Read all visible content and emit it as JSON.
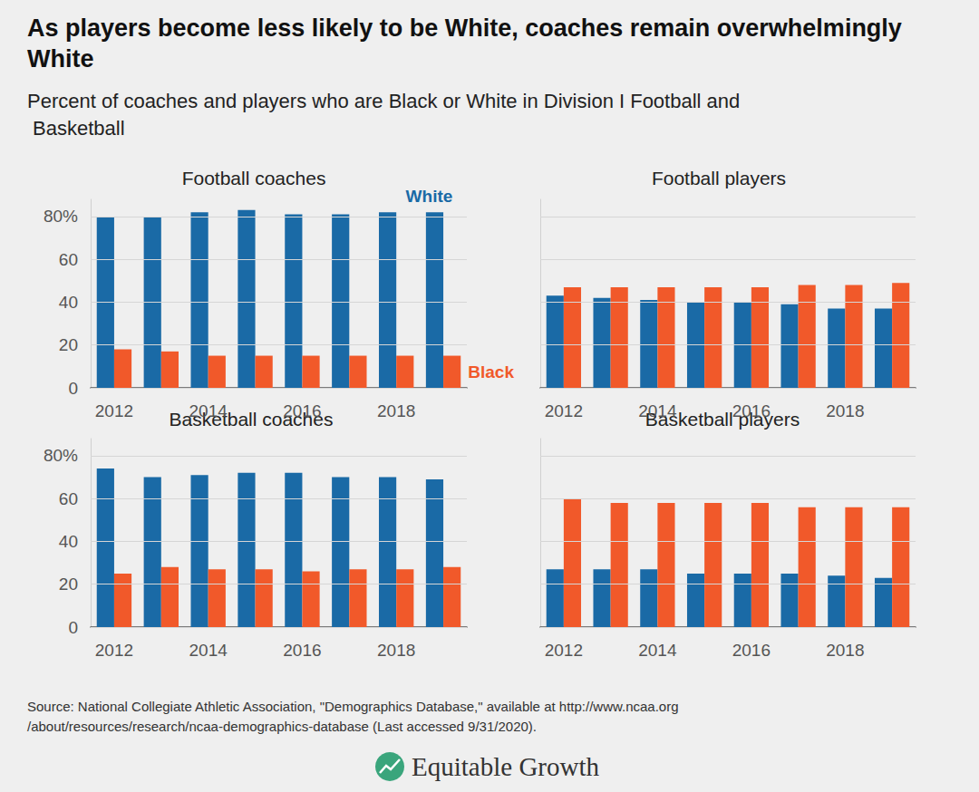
{
  "title": "As players become less likely to be White, coaches remain overwhelmingly White",
  "subtitle": "Percent of coaches and players who are Black or White in Division I Football and Basketball",
  "source": "Source: National Collegiate Athletic Association, \"Demographics Database,\" available at http://www.ncaa.org/about/resources/research/ncaa-demographics-database (Last accessed 9/31/2020).",
  "brand": "Equitable Growth",
  "chart_data": [
    {
      "type": "bar",
      "title": "Football coaches",
      "categories": [
        "2012",
        null,
        "2014",
        null,
        "2016",
        null,
        "2018",
        null
      ],
      "series": [
        {
          "name": "White",
          "color": "#1a6aa6",
          "values": [
            80,
            80,
            82,
            83,
            81,
            81,
            82,
            82
          ]
        },
        {
          "name": "Black",
          "color": "#f1592a",
          "values": [
            18,
            17,
            15,
            15,
            15,
            15,
            15,
            15
          ]
        }
      ],
      "ylim": [
        0,
        88
      ],
      "yticks": [
        0,
        20,
        40,
        60,
        {
          "value": 80,
          "label": "80%"
        }
      ],
      "grid": true,
      "legend": "right"
    },
    {
      "type": "bar",
      "title": "Football players",
      "categories": [
        "2012",
        null,
        "2014",
        null,
        "2016",
        null,
        "2018",
        null
      ],
      "series": [
        {
          "name": "White",
          "color": "#1a6aa6",
          "values": [
            43,
            42,
            41,
            40,
            40,
            39,
            37,
            37
          ]
        },
        {
          "name": "Black",
          "color": "#f1592a",
          "values": [
            47,
            47,
            47,
            47,
            47,
            48,
            48,
            49
          ]
        }
      ],
      "ylim": [
        0,
        88
      ],
      "yticks": [
        0,
        20,
        40,
        60,
        {
          "value": 80,
          "label": "80%"
        }
      ],
      "grid": true,
      "tick_labels": "x"
    },
    {
      "type": "bar",
      "title": "Basketball coaches",
      "categories": [
        "2012",
        null,
        "2014",
        null,
        "2016",
        null,
        "2018",
        null
      ],
      "series": [
        {
          "name": "White",
          "color": "#1a6aa6",
          "values": [
            74,
            70,
            71,
            72,
            72,
            70,
            70,
            69
          ]
        },
        {
          "name": "Black",
          "color": "#f1592a",
          "values": [
            25,
            28,
            27,
            27,
            26,
            27,
            27,
            28
          ]
        }
      ],
      "ylim": [
        0,
        88
      ],
      "yticks": [
        0,
        20,
        40,
        60,
        {
          "value": 80,
          "label": "80%"
        }
      ],
      "grid": true
    },
    {
      "type": "bar",
      "title": "Basketball players",
      "categories": [
        "2012",
        null,
        "2014",
        null,
        "2016",
        null,
        "2018",
        null
      ],
      "series": [
        {
          "name": "White",
          "color": "#1a6aa6",
          "values": [
            27,
            27,
            27,
            25,
            25,
            25,
            24,
            23
          ]
        },
        {
          "name": "Black",
          "color": "#f1592a",
          "values": [
            60,
            58,
            58,
            58,
            58,
            56,
            56,
            56
          ]
        }
      ],
      "ylim": [
        0,
        88
      ],
      "yticks": [
        0,
        20,
        40,
        60,
        {
          "value": 80,
          "label": "80%"
        }
      ],
      "grid": true,
      "tick_labels": "x"
    }
  ]
}
